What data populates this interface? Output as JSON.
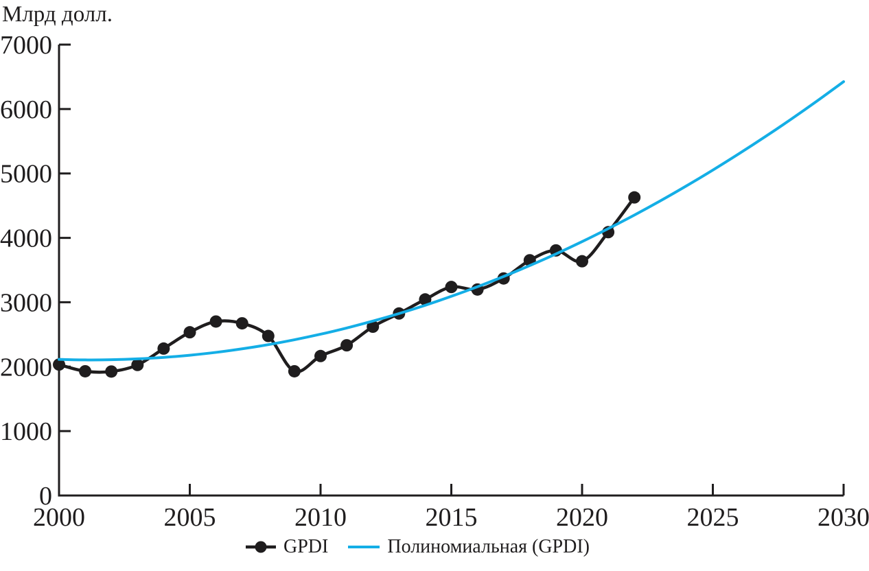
{
  "chart_data": {
    "type": "line",
    "title": "",
    "ylabel": "Млрд долл.",
    "xlabel": "",
    "xlim": [
      2000,
      2030
    ],
    "ylim": [
      0,
      7000
    ],
    "x_ticks": [
      2000,
      2005,
      2010,
      2015,
      2020,
      2025,
      2030
    ],
    "y_ticks": [
      0,
      1000,
      2000,
      3000,
      4000,
      5000,
      6000,
      7000
    ],
    "grid": false,
    "legend_position": "bottom-center",
    "axis_color": "#1F1D1E",
    "series": [
      {
        "name": "GPDI",
        "color": "#1F1D1E",
        "marker": "circle",
        "x": [
          2000,
          2001,
          2002,
          2003,
          2004,
          2005,
          2006,
          2007,
          2008,
          2009,
          2010,
          2011,
          2012,
          2013,
          2014,
          2015,
          2016,
          2017,
          2018,
          2019,
          2020,
          2021,
          2022
        ],
        "values": [
          2033,
          1929,
          1925,
          2027,
          2281,
          2534,
          2701,
          2673,
          2477,
          1929,
          2165,
          2332,
          2621,
          2826,
          3044,
          3237,
          3198,
          3370,
          3652,
          3805,
          3637,
          4088,
          4628
        ]
      },
      {
        "name": "Полиномиальная (GPDI)",
        "color": "#14AEE6",
        "marker": "none",
        "x": [
          2000,
          2001,
          2002,
          2003,
          2004,
          2005,
          2006,
          2007,
          2008,
          2009,
          2010,
          2011,
          2012,
          2013,
          2014,
          2015,
          2016,
          2017,
          2018,
          2019,
          2020,
          2021,
          2022,
          2023,
          2024,
          2025,
          2026,
          2027,
          2028,
          2029,
          2030
        ],
        "values": [
          2113,
          2105,
          2108,
          2121,
          2144,
          2178,
          2222,
          2277,
          2342,
          2418,
          2504,
          2601,
          2708,
          2825,
          2953,
          3092,
          3241,
          3400,
          3570,
          3750,
          3941,
          4143,
          4354,
          4576,
          4809,
          5052,
          5306,
          5570,
          5844,
          6129,
          6425
        ]
      }
    ]
  }
}
